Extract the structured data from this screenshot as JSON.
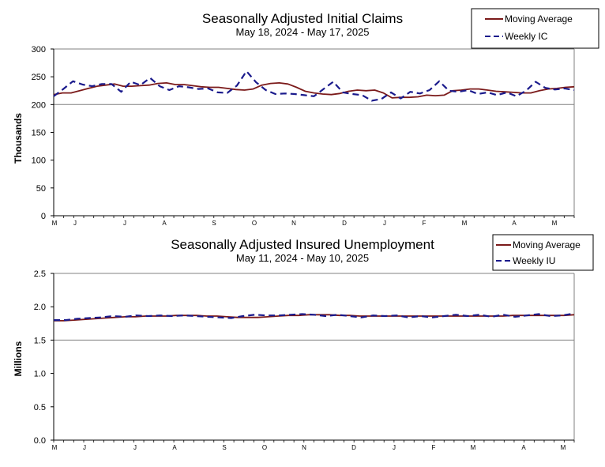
{
  "chart_data": [
    {
      "type": "line",
      "title": "Seasonally Adjusted Initial Claims",
      "subtitle": "May 18, 2024 - May 17, 2025",
      "ylabel": "Thousands",
      "xlabel": "",
      "ylim": [
        0,
        300
      ],
      "yticks": [
        "0",
        "50",
        "100",
        "150",
        "200",
        "250",
        "300"
      ],
      "month_labels": [
        "M",
        "J",
        "J",
        "A",
        "S",
        "O",
        "N",
        "D",
        "J",
        "F",
        "M",
        "A",
        "M"
      ],
      "grid": "horizontal line at 200",
      "legend_position": "top-right",
      "series": [
        {
          "name": "Moving Average",
          "color": "#7b1a1a",
          "style": "solid",
          "values": [
            218,
            221,
            221,
            225,
            229,
            233,
            235,
            237,
            233,
            233,
            234,
            235,
            238,
            239,
            236,
            236,
            234,
            232,
            231,
            231,
            229,
            227,
            226,
            228,
            235,
            238,
            239,
            237,
            231,
            224,
            221,
            219,
            218,
            220,
            224,
            226,
            225,
            226,
            221,
            212,
            213,
            213,
            214,
            217,
            216,
            217,
            225,
            226,
            228,
            228,
            226,
            224,
            223,
            222,
            221,
            221,
            225,
            228,
            229,
            231,
            232
          ]
        },
        {
          "name": "Weekly IC",
          "color": "#1a1a8c",
          "style": "dashed",
          "values": [
            215,
            228,
            242,
            236,
            233,
            237,
            237,
            223,
            241,
            235,
            248,
            233,
            226,
            233,
            231,
            228,
            229,
            222,
            221,
            234,
            260,
            240,
            226,
            219,
            220,
            219,
            217,
            215,
            228,
            241,
            222,
            219,
            217,
            207,
            210,
            222,
            211,
            223,
            220,
            226,
            242,
            225,
            223,
            226,
            219,
            222,
            217,
            222,
            215,
            225,
            241,
            230,
            227,
            229,
            226
          ]
        }
      ]
    },
    {
      "type": "line",
      "title": "Seasonally Adjusted Insured Unemployment",
      "subtitle": "May 11, 2024 - May 10, 2025",
      "ylabel": "Millions",
      "xlabel": "",
      "ylim": [
        0,
        2.5
      ],
      "yticks": [
        "0.0",
        "0.5",
        "1.0",
        "1.5",
        "2.0",
        "2.5"
      ],
      "month_labels": [
        "M",
        "J",
        "J",
        "A",
        "S",
        "O",
        "N",
        "D",
        "J",
        "F",
        "M",
        "A",
        "M"
      ],
      "grid": "horizontal line at 1.5",
      "legend_position": "top-right",
      "series": [
        {
          "name": "Moving Average",
          "color": "#7b1a1a",
          "style": "solid",
          "values": [
            1.79,
            1.79,
            1.8,
            1.81,
            1.82,
            1.83,
            1.84,
            1.85,
            1.85,
            1.86,
            1.86,
            1.86,
            1.87,
            1.87,
            1.87,
            1.86,
            1.86,
            1.85,
            1.84,
            1.84,
            1.84,
            1.85,
            1.86,
            1.87,
            1.87,
            1.88,
            1.88,
            1.88,
            1.87,
            1.87,
            1.86,
            1.86,
            1.86,
            1.86,
            1.86,
            1.86,
            1.86,
            1.86,
            1.86,
            1.86,
            1.86,
            1.86,
            1.86,
            1.86,
            1.86,
            1.87,
            1.87,
            1.87,
            1.87,
            1.87,
            1.87,
            1.88
          ]
        },
        {
          "name": "Weekly IU",
          "color": "#1a1a8c",
          "style": "dashed",
          "values": [
            1.8,
            1.8,
            1.82,
            1.83,
            1.84,
            1.86,
            1.85,
            1.87,
            1.86,
            1.87,
            1.86,
            1.87,
            1.86,
            1.85,
            1.84,
            1.83,
            1.86,
            1.88,
            1.87,
            1.87,
            1.88,
            1.89,
            1.88,
            1.86,
            1.88,
            1.86,
            1.84,
            1.87,
            1.86,
            1.87,
            1.84,
            1.86,
            1.84,
            1.86,
            1.88,
            1.86,
            1.88,
            1.85,
            1.88,
            1.85,
            1.87,
            1.89,
            1.86,
            1.87,
            1.9
          ]
        }
      ]
    }
  ]
}
